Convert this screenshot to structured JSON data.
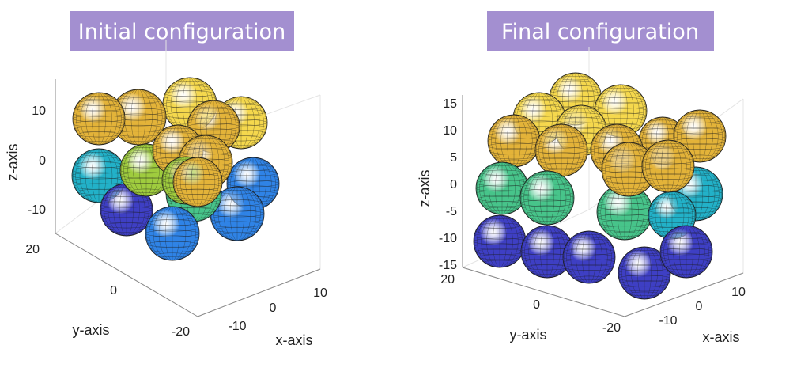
{
  "panels": [
    {
      "id": "initial",
      "title": "Initial configuration",
      "z_axis_label": "z-axis",
      "y_axis_label": "y-axis",
      "x_axis_label": "x-axis",
      "z_ticks": [
        "10",
        "0",
        "-10"
      ],
      "y_ticks": [
        "20",
        "0",
        "-20"
      ],
      "x_ticks": [
        "-10",
        "0",
        "10"
      ]
    },
    {
      "id": "final",
      "title": "Final configuration",
      "z_axis_label": "z-axis",
      "y_axis_label": "y-axis",
      "x_axis_label": "x-axis",
      "z_ticks": [
        "15",
        "10",
        "5",
        "0",
        "-5",
        "-10",
        "-15"
      ],
      "y_ticks": [
        "20",
        "0",
        "-20"
      ],
      "x_ticks": [
        "-10",
        "0",
        "10"
      ]
    }
  ],
  "colormap": [
    "#3e3fc4",
    "#2f83e6",
    "#22b1c8",
    "#47c48a",
    "#9fcc3e",
    "#e3b339",
    "#f5d84d"
  ]
}
